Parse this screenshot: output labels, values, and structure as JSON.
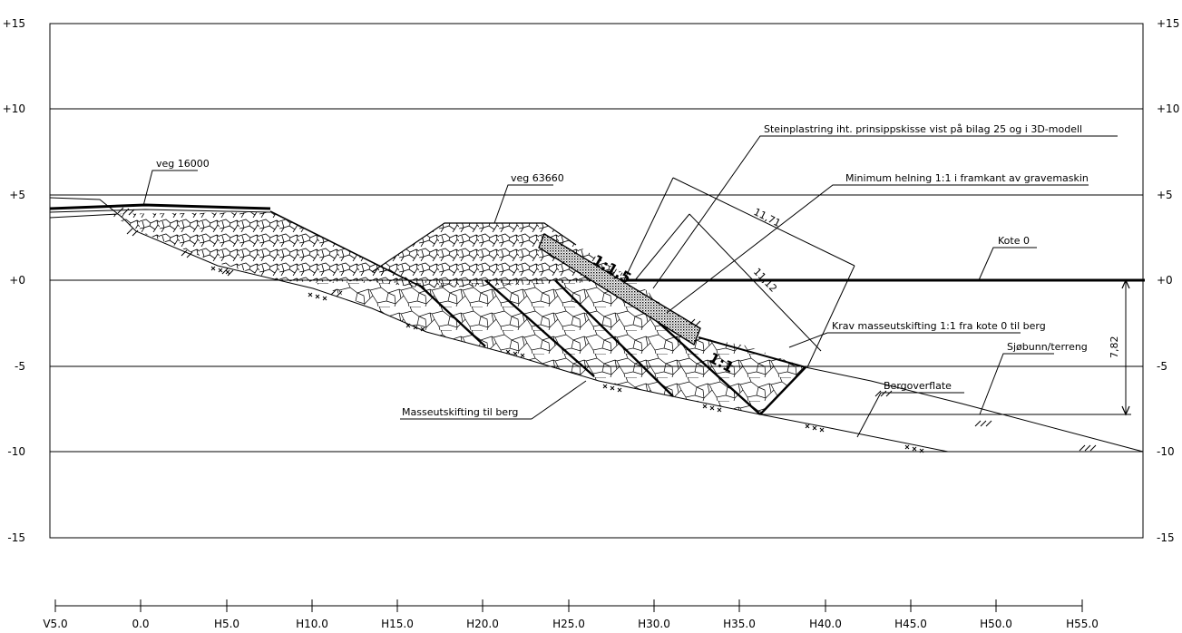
{
  "elevation_axis": {
    "labels": [
      "+15",
      "+10",
      "+5",
      "+0",
      "-5",
      "-10",
      "-15"
    ],
    "values": [
      15,
      10,
      5,
      0,
      -5,
      -10,
      -15
    ]
  },
  "station_axis": {
    "labels": [
      "V5.0",
      "0.0",
      "H5.0",
      "H10.0",
      "H15.0",
      "H20.0",
      "H25.0",
      "H30.0",
      "H35.0",
      "H40.0",
      "H45.0",
      "H50.0",
      "H55.0"
    ],
    "values": [
      -5,
      0,
      5,
      10,
      15,
      20,
      25,
      30,
      35,
      40,
      45,
      50,
      55
    ]
  },
  "annotations": {
    "veg_16000": "veg 16000",
    "veg_63660": "veg 63660",
    "steinplastring": "Steinplastring iht. prinsippskisse vist på  bilag 25 og i 3D-modell",
    "minimum_helning": "Minimum helning 1:1  i framkant av gravemaskin",
    "kote_0": "Kote 0",
    "krav_masseutskifting": "Krav masseutskifting 1:1 fra kote 0 til berg",
    "sjobunn": "Sjøbunn/terreng",
    "bergoverflate": "Bergoverflate",
    "masseutskifting_berg": "Masseutskifting til berg"
  },
  "dimensions": {
    "d1": "11,71",
    "d2": "11,12",
    "depth": "7,82"
  },
  "slopes": {
    "upper": "1:1,5",
    "lower": "1:1"
  },
  "colors": {
    "line": "#000000",
    "background": "#ffffff"
  }
}
